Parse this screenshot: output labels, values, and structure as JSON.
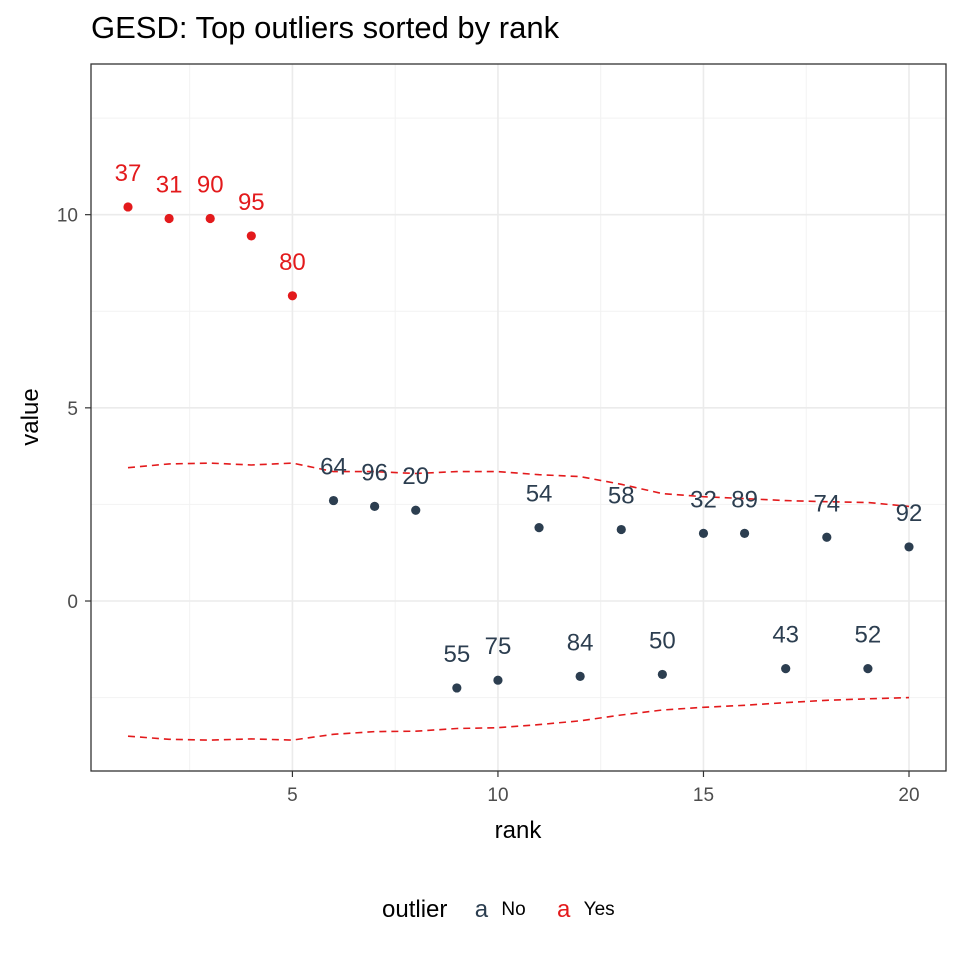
{
  "chart_data": {
    "type": "scatter",
    "title": "GESD: Top outliers sorted by rank",
    "xlabel": "rank",
    "ylabel": "value",
    "xlim": [
      0.1,
      20.9
    ],
    "ylim": [
      -4.4,
      13.9
    ],
    "x_ticks": [
      5,
      10,
      15,
      20
    ],
    "y_ticks": [
      0,
      5,
      10
    ],
    "x_ticks_minor": [
      2.5,
      7.5,
      12.5,
      17.5
    ],
    "y_ticks_minor": [
      -2.5,
      2.5,
      7.5,
      12.5
    ],
    "grid": true,
    "legend_position": "bottom",
    "legend": {
      "title": "outlier",
      "entries": [
        {
          "label": "No",
          "key": "a",
          "color": "#2c3e50"
        },
        {
          "label": "Yes",
          "key": "a",
          "color": "#e31a1c"
        }
      ]
    },
    "colors": {
      "No": "#2c3e50",
      "Yes": "#e31a1c"
    },
    "points": [
      {
        "rank": 1,
        "value": 10.2,
        "label": "37",
        "outlier": "Yes"
      },
      {
        "rank": 2,
        "value": 9.9,
        "label": "31",
        "outlier": "Yes"
      },
      {
        "rank": 3,
        "value": 9.9,
        "label": "90",
        "outlier": "Yes"
      },
      {
        "rank": 4,
        "value": 9.45,
        "label": "95",
        "outlier": "Yes"
      },
      {
        "rank": 5,
        "value": 7.9,
        "label": "80",
        "outlier": "Yes"
      },
      {
        "rank": 6,
        "value": 2.6,
        "label": "64",
        "outlier": "No"
      },
      {
        "rank": 7,
        "value": 2.45,
        "label": "96",
        "outlier": "No"
      },
      {
        "rank": 8,
        "value": 2.35,
        "label": "20",
        "outlier": "No"
      },
      {
        "rank": 9,
        "value": -2.25,
        "label": "55",
        "outlier": "No"
      },
      {
        "rank": 10,
        "value": -2.05,
        "label": "75",
        "outlier": "No"
      },
      {
        "rank": 11,
        "value": 1.9,
        "label": "54",
        "outlier": "No"
      },
      {
        "rank": 12,
        "value": -1.95,
        "label": "84",
        "outlier": "No"
      },
      {
        "rank": 13,
        "value": 1.85,
        "label": "58",
        "outlier": "No"
      },
      {
        "rank": 14,
        "value": -1.9,
        "label": "50",
        "outlier": "No"
      },
      {
        "rank": 15,
        "value": 1.75,
        "label": "32",
        "outlier": "No"
      },
      {
        "rank": 16,
        "value": 1.75,
        "label": "89",
        "outlier": "No"
      },
      {
        "rank": 17,
        "value": -1.75,
        "label": "43",
        "outlier": "No"
      },
      {
        "rank": 18,
        "value": 1.65,
        "label": "74",
        "outlier": "No"
      },
      {
        "rank": 19,
        "value": -1.75,
        "label": "52",
        "outlier": "No"
      },
      {
        "rank": 20,
        "value": 1.4,
        "label": "92",
        "outlier": "No"
      }
    ],
    "limit_upper": {
      "x": [
        1,
        2,
        3,
        4,
        5,
        6,
        7,
        8,
        9,
        10,
        11,
        12,
        13,
        14,
        15,
        16,
        17,
        18,
        19,
        20
      ],
      "y": [
        3.45,
        3.55,
        3.57,
        3.52,
        3.57,
        3.35,
        3.35,
        3.3,
        3.35,
        3.35,
        3.27,
        3.22,
        3.02,
        2.78,
        2.7,
        2.65,
        2.6,
        2.57,
        2.55,
        2.45
      ]
    },
    "limit_lower": {
      "x": [
        1,
        2,
        3,
        4,
        5,
        6,
        7,
        8,
        9,
        10,
        11,
        12,
        13,
        14,
        15,
        16,
        17,
        18,
        19,
        20
      ],
      "y": [
        -3.5,
        -3.58,
        -3.6,
        -3.57,
        -3.6,
        -3.45,
        -3.38,
        -3.37,
        -3.3,
        -3.28,
        -3.2,
        -3.1,
        -2.95,
        -2.82,
        -2.75,
        -2.7,
        -2.63,
        -2.57,
        -2.53,
        -2.5
      ]
    }
  }
}
